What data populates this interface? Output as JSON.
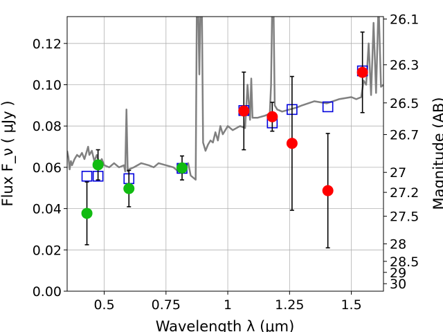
{
  "chart_data": {
    "type": "scatter",
    "title": "",
    "xlabel": "Wavelength  λ (μm)",
    "ylabel": "Flux  F_ν  ( μJy )",
    "y2label": "Magnitude (AB)",
    "xlim": [
      0.35,
      1.63
    ],
    "ylim": [
      0,
      0.133
    ],
    "grid": true,
    "xticks": [
      {
        "value": 0.5,
        "label": "0.5"
      },
      {
        "value": 0.75,
        "label": "0.75"
      },
      {
        "value": 1.0,
        "label": "1"
      },
      {
        "value": 1.25,
        "label": "1.25"
      },
      {
        "value": 1.5,
        "label": "1.5"
      }
    ],
    "yticks": [
      {
        "value": 0.0,
        "label": "0.00"
      },
      {
        "value": 0.02,
        "label": "0.02"
      },
      {
        "value": 0.04,
        "label": "0.04"
      },
      {
        "value": 0.06,
        "label": "0.06"
      },
      {
        "value": 0.08,
        "label": "0.08"
      },
      {
        "value": 0.1,
        "label": "0.10"
      },
      {
        "value": 0.12,
        "label": "0.12"
      }
    ],
    "mag_ticks": [
      {
        "mag": 26.1,
        "label": "26.1"
      },
      {
        "mag": 26.3,
        "label": "26.3"
      },
      {
        "mag": 26.5,
        "label": "26.5"
      },
      {
        "mag": 26.7,
        "label": "26.7"
      },
      {
        "mag": 27.0,
        "label": "27"
      },
      {
        "mag": 27.2,
        "label": "27.2"
      },
      {
        "mag": 27.5,
        "label": "27.5"
      },
      {
        "mag": 28.0,
        "label": "28"
      },
      {
        "mag": 28.5,
        "label": "28.5"
      },
      {
        "mag": 29.0,
        "label": "29"
      },
      {
        "mag": 30.0,
        "label": "30"
      }
    ],
    "colors": {
      "optical": "#11bb11",
      "nir": "#ff0000",
      "model_points": "#0000dd",
      "template": "#808080",
      "grid": "#b0b0b0"
    },
    "template": {
      "x": [
        0.35,
        0.355,
        0.36,
        0.365,
        0.37,
        0.38,
        0.39,
        0.4,
        0.41,
        0.42,
        0.43,
        0.435,
        0.44,
        0.45,
        0.46,
        0.47,
        0.48,
        0.49,
        0.5,
        0.52,
        0.54,
        0.56,
        0.58,
        0.585,
        0.59,
        0.595,
        0.6,
        0.62,
        0.65,
        0.68,
        0.7,
        0.72,
        0.75,
        0.78,
        0.8,
        0.82,
        0.84,
        0.85,
        0.86,
        0.87,
        0.875,
        0.88,
        0.885,
        0.89,
        0.895,
        0.9,
        0.905,
        0.91,
        0.92,
        0.93,
        0.94,
        0.95,
        0.96,
        0.97,
        0.98,
        0.99,
        1.0,
        1.02,
        1.05,
        1.07,
        1.08,
        1.09,
        1.095,
        1.1,
        1.12,
        1.15,
        1.17,
        1.175,
        1.18,
        1.185,
        1.19,
        1.2,
        1.22,
        1.25,
        1.28,
        1.3,
        1.35,
        1.4,
        1.45,
        1.5,
        1.52,
        1.54,
        1.55,
        1.56,
        1.57,
        1.58,
        1.59,
        1.6,
        1.61,
        1.62,
        1.63
      ],
      "y": [
        0.068,
        0.065,
        0.059,
        0.063,
        0.061,
        0.064,
        0.066,
        0.065,
        0.067,
        0.064,
        0.068,
        0.07,
        0.066,
        0.068,
        0.063,
        0.066,
        0.062,
        0.064,
        0.061,
        0.06,
        0.062,
        0.06,
        0.061,
        0.058,
        0.088,
        0.058,
        0.059,
        0.06,
        0.062,
        0.061,
        0.06,
        0.062,
        0.061,
        0.06,
        0.058,
        0.06,
        0.062,
        0.056,
        0.055,
        0.054,
        0.14,
        0.14,
        0.105,
        0.14,
        0.14,
        0.072,
        0.07,
        0.068,
        0.071,
        0.073,
        0.072,
        0.077,
        0.073,
        0.08,
        0.076,
        0.078,
        0.08,
        0.078,
        0.08,
        0.079,
        0.1,
        0.083,
        0.103,
        0.084,
        0.084,
        0.085,
        0.086,
        0.1,
        0.14,
        0.14,
        0.09,
        0.088,
        0.087,
        0.088,
        0.089,
        0.09,
        0.092,
        0.091,
        0.093,
        0.094,
        0.093,
        0.094,
        0.102,
        0.1,
        0.12,
        0.095,
        0.13,
        0.096,
        0.14,
        0.099,
        0.1
      ]
    },
    "series": [
      {
        "role": "optical",
        "x": [
          0.43,
          0.475,
          0.6,
          0.815
        ],
        "y": [
          0.0377,
          0.0612,
          0.0497,
          0.0597
        ],
        "err": [
          0.0152,
          0.0073,
          0.0088,
          0.0058
        ]
      },
      {
        "role": "nir",
        "x": [
          1.065,
          1.18,
          1.26,
          1.405,
          1.545
        ],
        "y": [
          0.0873,
          0.0845,
          0.0716,
          0.0487,
          0.106
        ],
        "err": [
          0.0188,
          0.007,
          0.0324,
          0.0277,
          0.0195
        ]
      },
      {
        "role": "model_points",
        "x": [
          0.43,
          0.475,
          0.6,
          0.815,
          1.065,
          1.18,
          1.26,
          1.405,
          1.545
        ],
        "y": [
          0.0557,
          0.0557,
          0.0545,
          0.0595,
          0.0875,
          0.0815,
          0.088,
          0.0893,
          0.1067
        ]
      }
    ]
  }
}
